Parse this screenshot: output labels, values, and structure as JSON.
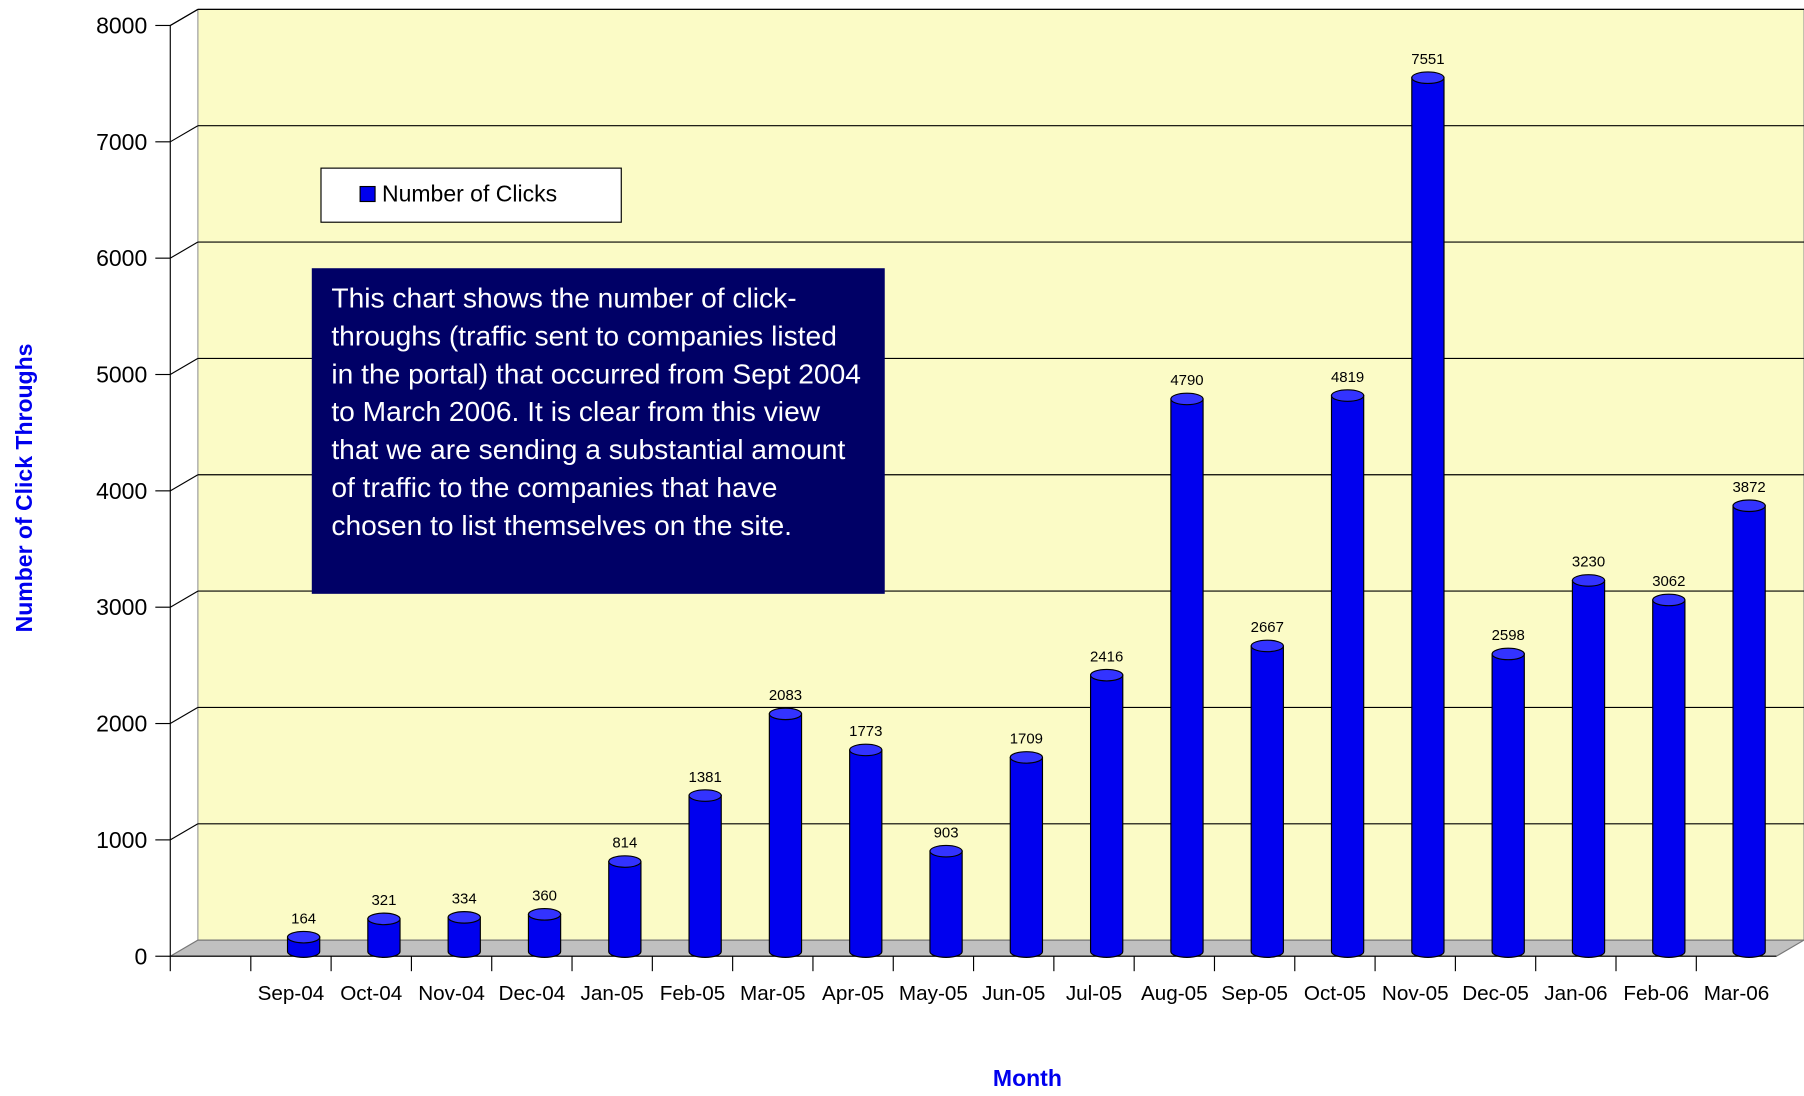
{
  "chart_data": {
    "type": "bar",
    "y_label": "Number of Click Throughs",
    "x_label": "Month",
    "annotation": "This chart shows the number of click-throughs (traffic sent to companies listed in the portal) that occurred from Sept 2004 to March 2006.  It is clear from this view that we are sending a substantial amount of traffic to the companies that have chosen to list themselves on the site.",
    "categories": [
      "Sep-04",
      "Oct-04",
      "Nov-04",
      "Dec-04",
      "Jan-05",
      "Feb-05",
      "Mar-05",
      "Apr-05",
      "May-05",
      "Jun-05",
      "Jul-05",
      "Aug-05",
      "Sep-05",
      "Oct-05",
      "Nov-05",
      "Dec-05",
      "Jan-06",
      "Feb-06",
      "Mar-06"
    ],
    "series": [
      {
        "name": "Number of Clicks",
        "color": "#0000ee",
        "values": [
          164,
          321,
          334,
          360,
          814,
          1381,
          2083,
          1773,
          903,
          1709,
          2416,
          4790,
          2667,
          4819,
          7551,
          2598,
          3230,
          3062,
          3872
        ]
      }
    ],
    "ylim": [
      0,
      8000
    ],
    "yticks": [
      0,
      1000,
      2000,
      3000,
      4000,
      5000,
      6000,
      7000,
      8000
    ],
    "grid": true
  }
}
